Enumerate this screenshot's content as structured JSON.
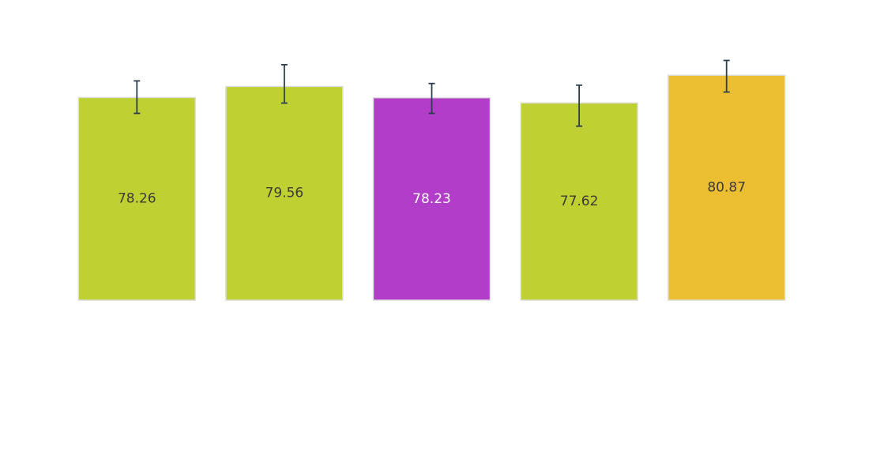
{
  "chart_data": {
    "type": "bar",
    "categories": [],
    "values": [
      78.26,
      79.56,
      78.23,
      77.62,
      80.87
    ],
    "errors": [
      {
        "low": 76.4,
        "high": 80.2
      },
      {
        "low": 77.6,
        "high": 82.1
      },
      {
        "low": 76.4,
        "high": 79.9
      },
      {
        "low": 74.9,
        "high": 79.7
      },
      {
        "low": 78.9,
        "high": 82.6
      }
    ],
    "labels": [
      "78.26",
      "79.56",
      "78.23",
      "77.62",
      "80.87"
    ],
    "colors": [
      "#bfd032",
      "#bfd032",
      "#b23dc8",
      "#bfd032",
      "#ecbf33"
    ],
    "label_colors": [
      "#3b3b3b",
      "#3b3b3b",
      "#ffffff",
      "#3b3b3b",
      "#3b3b3b"
    ],
    "title": "",
    "xlabel": "",
    "ylabel": "",
    "ylim": [
      54.5,
      84.5
    ],
    "grid": false,
    "legend": "none"
  }
}
